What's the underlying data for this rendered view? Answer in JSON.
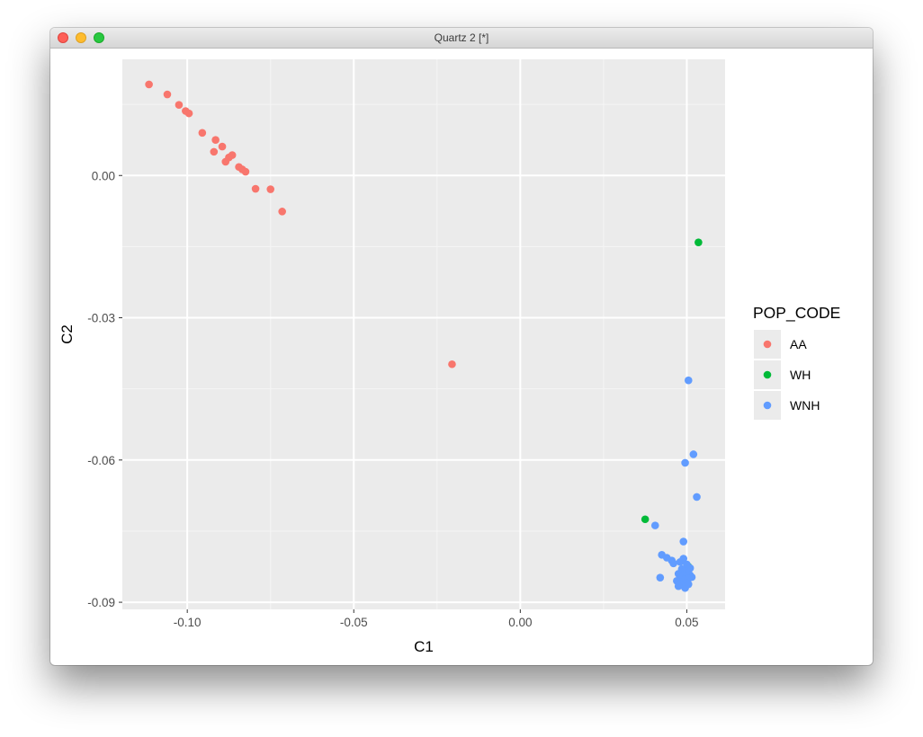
{
  "window": {
    "title": "Quartz 2 [*]"
  },
  "colors": {
    "panel_bg": "#ebebeb",
    "grid_major": "#ffffff",
    "grid_minor": "#f5f5f5",
    "AA": "#f8766d",
    "WH": "#00ba38",
    "WNH": "#619cff"
  },
  "chart_data": {
    "type": "scatter",
    "xlabel": "C1",
    "ylabel": "C2",
    "xlim": [
      -0.1195,
      0.0615
    ],
    "ylim": [
      -0.0915,
      0.0245
    ],
    "x_ticks": [
      -0.1,
      -0.05,
      0.0,
      0.05
    ],
    "x_tick_labels": [
      "-0.10",
      "-0.05",
      "0.00",
      "0.05"
    ],
    "y_ticks": [
      0.0,
      -0.03,
      -0.06,
      -0.09
    ],
    "y_tick_labels": [
      "0.00",
      "-0.03",
      "-0.06",
      "-0.09"
    ],
    "grid": true,
    "legend": {
      "title": "POP_CODE",
      "position": "right",
      "entries": [
        "AA",
        "WH",
        "WNH"
      ]
    },
    "series": [
      {
        "name": "AA",
        "points": [
          [
            -0.1115,
            0.0192
          ],
          [
            -0.106,
            0.0171
          ],
          [
            -0.1025,
            0.0149
          ],
          [
            -0.1005,
            0.0136
          ],
          [
            -0.0995,
            0.0131
          ],
          [
            -0.0955,
            0.009
          ],
          [
            -0.0915,
            0.0075
          ],
          [
            -0.0895,
            0.0061
          ],
          [
            -0.092,
            0.005
          ],
          [
            -0.0875,
            0.0038
          ],
          [
            -0.0865,
            0.0043
          ],
          [
            -0.0885,
            0.0029
          ],
          [
            -0.0845,
            0.0018
          ],
          [
            -0.0835,
            0.0013
          ],
          [
            -0.0825,
            0.0008
          ],
          [
            -0.0795,
            -0.0028
          ],
          [
            -0.075,
            -0.0029
          ],
          [
            -0.0715,
            -0.0076
          ],
          [
            -0.0205,
            -0.0398
          ]
        ]
      },
      {
        "name": "WH",
        "points": [
          [
            0.0535,
            -0.0141
          ],
          [
            0.0375,
            -0.0725
          ],
          [
            0.0505,
            -0.0825
          ]
        ]
      },
      {
        "name": "WNH",
        "points": [
          [
            0.0505,
            -0.0432
          ],
          [
            0.052,
            -0.0588
          ],
          [
            0.0495,
            -0.0606
          ],
          [
            0.053,
            -0.0678
          ],
          [
            0.0405,
            -0.0738
          ],
          [
            0.049,
            -0.0772
          ],
          [
            0.0425,
            -0.08
          ],
          [
            0.044,
            -0.0806
          ],
          [
            0.0455,
            -0.0812
          ],
          [
            0.046,
            -0.0818
          ],
          [
            0.048,
            -0.0815
          ],
          [
            0.049,
            -0.0808
          ],
          [
            0.05,
            -0.082
          ],
          [
            0.051,
            -0.0828
          ],
          [
            0.0485,
            -0.083
          ],
          [
            0.0495,
            -0.0835
          ],
          [
            0.0505,
            -0.0838
          ],
          [
            0.0475,
            -0.084
          ],
          [
            0.049,
            -0.0843
          ],
          [
            0.05,
            -0.0845
          ],
          [
            0.051,
            -0.0843
          ],
          [
            0.0515,
            -0.0847
          ],
          [
            0.048,
            -0.085
          ],
          [
            0.0495,
            -0.0852
          ],
          [
            0.0505,
            -0.085
          ],
          [
            0.042,
            -0.0848
          ],
          [
            0.047,
            -0.0855
          ],
          [
            0.0485,
            -0.0858
          ],
          [
            0.05,
            -0.086
          ],
          [
            0.049,
            -0.0865
          ],
          [
            0.048,
            -0.0862
          ],
          [
            0.0495,
            -0.087
          ],
          [
            0.0475,
            -0.0866
          ],
          [
            0.0505,
            -0.0862
          ]
        ]
      }
    ]
  }
}
